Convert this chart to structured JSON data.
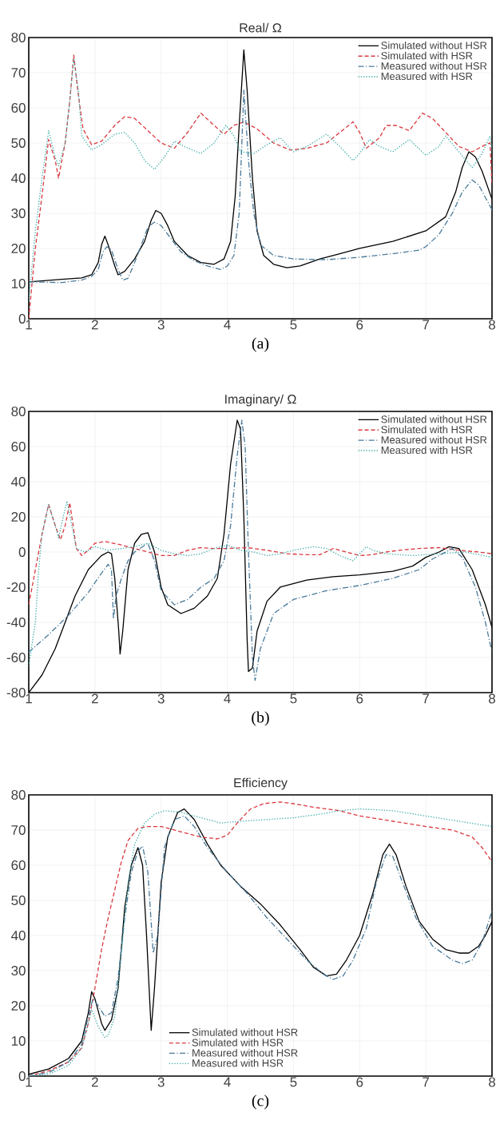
{
  "chart_data": [
    {
      "type": "line",
      "title": "Real/ Ω",
      "annotations": [
        "(a)"
      ],
      "xlim": [
        1,
        8
      ],
      "ylim": [
        0,
        80
      ],
      "xticks": [
        1,
        2,
        3,
        4,
        5,
        6,
        7,
        8
      ],
      "yticks": [
        0,
        10,
        20,
        30,
        40,
        50,
        60,
        70,
        80
      ],
      "grid": true,
      "legend": "top right",
      "marker": "none",
      "series": [
        {
          "name": "Simulated without HSR",
          "color": "#000000",
          "line_style": "solid",
          "x": [
            1,
            1.5,
            1.8,
            1.95,
            2.05,
            2.1,
            2.15,
            2.2,
            2.3,
            2.35,
            2.45,
            2.6,
            2.75,
            2.85,
            2.92,
            3.0,
            3.1,
            3.2,
            3.4,
            3.6,
            3.8,
            3.95,
            4.05,
            4.12,
            4.18,
            4.25,
            4.3,
            4.38,
            4.45,
            4.55,
            4.7,
            4.9,
            5.1,
            5.4,
            5.7,
            6.0,
            6.5,
            7.0,
            7.3,
            7.45,
            7.55,
            7.65,
            7.75,
            7.85,
            8.0
          ],
          "values": [
            10.5,
            11.2,
            11.6,
            12.5,
            16,
            21,
            23.5,
            21,
            15,
            12.5,
            13.5,
            17,
            22,
            28,
            30.8,
            30,
            26.5,
            22,
            18,
            16,
            15.5,
            17,
            22,
            35,
            55,
            76.5,
            65,
            40,
            25,
            18,
            15.5,
            14.5,
            15,
            17,
            18.5,
            20,
            22,
            25,
            29,
            36,
            43,
            47.5,
            46,
            42,
            34
          ]
        },
        {
          "name": "Simulated with HSR",
          "color": "#d9393f",
          "line_style": "dashed",
          "x": [
            1,
            1.1,
            1.2,
            1.3,
            1.4,
            1.45,
            1.55,
            1.62,
            1.68,
            1.74,
            1.82,
            1.95,
            2.1,
            2.3,
            2.45,
            2.6,
            2.8,
            3.0,
            3.2,
            3.4,
            3.6,
            3.8,
            3.95,
            4.1,
            4.25,
            4.45,
            4.7,
            4.95,
            5.2,
            5.5,
            5.7,
            5.9,
            6.0,
            6.1,
            6.3,
            6.4,
            6.55,
            6.75,
            6.95,
            7.1,
            7.3,
            7.5,
            7.7,
            7.9,
            7.97,
            8.0
          ],
          "values": [
            0,
            20,
            35,
            51,
            45,
            40,
            50,
            62,
            75,
            65,
            54,
            49.5,
            50.5,
            55,
            57.5,
            57,
            53.5,
            50,
            48.5,
            53,
            58.5,
            55,
            52.5,
            55,
            56,
            54,
            50,
            48,
            48.5,
            50,
            53,
            56,
            53,
            48.5,
            51.5,
            55,
            55,
            53.5,
            58.5,
            57,
            53,
            49,
            47.5,
            49.5,
            50,
            38
          ]
        },
        {
          "name": "Measured without HSR",
          "color": "#4a7a9a",
          "line_style": "dashdot",
          "x": [
            1,
            1.5,
            1.8,
            1.95,
            2.05,
            2.12,
            2.18,
            2.25,
            2.35,
            2.42,
            2.5,
            2.6,
            2.7,
            2.8,
            2.9,
            3.0,
            3.1,
            3.3,
            3.5,
            3.7,
            3.9,
            4.0,
            4.1,
            4.18,
            4.25,
            4.32,
            4.4,
            4.5,
            4.7,
            5.0,
            5.5,
            6.0,
            6.5,
            6.9,
            7.0,
            7.2,
            7.4,
            7.55,
            7.7,
            7.8,
            8.0
          ],
          "values": [
            10.5,
            10.3,
            11,
            12,
            14,
            19,
            20.5,
            19.5,
            14,
            11,
            11.5,
            16,
            21,
            26,
            27.5,
            26.5,
            24,
            19,
            16.5,
            15,
            14,
            15,
            18,
            30,
            65,
            45,
            30,
            21,
            18,
            17,
            16.8,
            17.5,
            18.5,
            19.5,
            20.5,
            24,
            30,
            36,
            39.5,
            38,
            31
          ]
        },
        {
          "name": "Measured with HSR",
          "color": "#3aaaa8",
          "line_style": "dotted",
          "x": [
            1,
            1.1,
            1.2,
            1.3,
            1.4,
            1.45,
            1.55,
            1.62,
            1.68,
            1.75,
            1.8,
            1.95,
            2.1,
            2.3,
            2.45,
            2.6,
            2.75,
            2.9,
            3.05,
            3.2,
            3.35,
            3.6,
            3.8,
            3.98,
            4.1,
            4.2,
            4.4,
            4.6,
            4.8,
            5.0,
            5.2,
            5.5,
            5.7,
            5.9,
            6.0,
            6.15,
            6.3,
            6.5,
            6.75,
            7.0,
            7.2,
            7.3,
            7.5,
            7.7,
            7.85,
            7.97,
            8.0
          ],
          "values": [
            5,
            25,
            40,
            53.5,
            46,
            43.5,
            50,
            62,
            74,
            65,
            52,
            48,
            49.5,
            52.5,
            53,
            50,
            45,
            42.5,
            46,
            50.5,
            49,
            47,
            50,
            55,
            52,
            47.5,
            47,
            49.5,
            51.5,
            47.5,
            49,
            52.5,
            49,
            45,
            47,
            51,
            49,
            47.5,
            51,
            46.5,
            49,
            52,
            47.5,
            43,
            47,
            52,
            48
          ]
        }
      ]
    },
    {
      "type": "line",
      "title": "Imaginary/ Ω",
      "annotations": [
        "(b)"
      ],
      "xlim": [
        1,
        8
      ],
      "ylim": [
        -80,
        80
      ],
      "xticks": [
        1,
        2,
        3,
        4,
        5,
        6,
        7,
        8
      ],
      "yticks": [
        -80,
        -60,
        -40,
        -20,
        0,
        20,
        40,
        60,
        80
      ],
      "grid": true,
      "legend": "top right",
      "marker": "none",
      "series": [
        {
          "name": "Simulated without HSR",
          "color": "#000000",
          "line_style": "solid",
          "x": [
            1,
            1.2,
            1.4,
            1.6,
            1.7,
            1.9,
            2.1,
            2.2,
            2.25,
            2.3,
            2.36,
            2.38,
            2.42,
            2.5,
            2.6,
            2.7,
            2.8,
            2.9,
            3.0,
            3.1,
            3.3,
            3.5,
            3.7,
            3.85,
            3.95,
            4.05,
            4.15,
            4.2,
            4.25,
            4.3,
            4.32,
            4.38,
            4.45,
            4.6,
            4.8,
            5.2,
            5.6,
            6.0,
            6.5,
            6.8,
            7.0,
            7.2,
            7.35,
            7.5,
            7.7,
            7.9,
            8.0
          ],
          "values": [
            -80,
            -70,
            -55,
            -35,
            -25,
            -10,
            -2,
            0,
            -1,
            -15,
            -45,
            -58,
            -45,
            -10,
            5,
            10,
            11,
            0,
            -20,
            -30,
            -35,
            -32,
            -25,
            -15,
            10,
            50,
            75,
            70,
            20,
            -50,
            -68,
            -66,
            -45,
            -28,
            -20,
            -16,
            -14,
            -13,
            -11,
            -8,
            -3,
            0,
            3,
            2,
            -10,
            -30,
            -43
          ]
        },
        {
          "name": "Simulated with HSR",
          "color": "#d9393f",
          "line_style": "dashed",
          "x": [
            1,
            1.1,
            1.2,
            1.3,
            1.4,
            1.48,
            1.55,
            1.62,
            1.67,
            1.72,
            1.8,
            1.9,
            2.0,
            2.15,
            2.4,
            2.6,
            2.8,
            3.0,
            3.2,
            3.4,
            3.6,
            3.8,
            4.0,
            4.3,
            4.6,
            4.9,
            5.2,
            5.4,
            5.6,
            5.8,
            6.0,
            6.2,
            6.4,
            6.6,
            6.9,
            7.2,
            7.5,
            7.8,
            8.0
          ],
          "values": [
            -30,
            -10,
            10,
            27,
            15,
            7,
            15,
            28,
            15,
            2,
            -2,
            1,
            5,
            6,
            4,
            2,
            0,
            -2,
            -2,
            1,
            2.5,
            2,
            2,
            2.5,
            1,
            -1,
            -1.5,
            -1.5,
            2,
            0,
            -2,
            -1.5,
            0,
            1,
            2,
            2.5,
            1,
            0,
            -1
          ]
        },
        {
          "name": "Measured without HSR",
          "color": "#4a7a9a",
          "line_style": "dashdot",
          "x": [
            1,
            1.3,
            1.6,
            1.9,
            2.1,
            2.2,
            2.25,
            2.28,
            2.32,
            2.4,
            2.5,
            2.6,
            2.8,
            2.9,
            3.0,
            3.2,
            3.4,
            3.6,
            3.8,
            3.95,
            4.05,
            4.15,
            4.22,
            4.27,
            4.32,
            4.38,
            4.42,
            4.5,
            4.7,
            5.0,
            5.5,
            6.0,
            6.5,
            6.9,
            7.1,
            7.4,
            7.55,
            7.75,
            7.9,
            8.0
          ],
          "values": [
            -57,
            -47,
            -36,
            -23,
            -12,
            -7,
            -10,
            -38,
            -25,
            -15,
            -5,
            0,
            5,
            -5,
            -22,
            -30,
            -27,
            -20,
            -15,
            -5,
            15,
            55,
            75,
            60,
            0,
            -60,
            -73,
            -55,
            -35,
            -27,
            -22,
            -19,
            -15,
            -10,
            -4,
            2,
            -3,
            -20,
            -40,
            -57
          ]
        },
        {
          "name": "Measured with HSR",
          "color": "#3aaaa8",
          "line_style": "dotted",
          "x": [
            1,
            1.1,
            1.15,
            1.2,
            1.3,
            1.4,
            1.45,
            1.52,
            1.58,
            1.65,
            1.72,
            1.85,
            2.0,
            2.2,
            2.4,
            2.6,
            2.8,
            3.0,
            3.2,
            3.4,
            3.6,
            3.8,
            4.0,
            4.2,
            4.4,
            4.6,
            4.8,
            5.0,
            5.3,
            5.5,
            5.7,
            5.9,
            6.0,
            6.1,
            6.2,
            6.4,
            6.8,
            7.2,
            7.6,
            8.0
          ],
          "values": [
            -65,
            -40,
            -10,
            10,
            27,
            15,
            8,
            20,
            29,
            15,
            2,
            0,
            3,
            1,
            2,
            3,
            5,
            1,
            -1,
            -2,
            -1,
            2,
            4,
            1,
            0,
            -2,
            -1,
            1,
            3,
            2,
            -2,
            -5,
            -1,
            3,
            1,
            -1,
            -2,
            -1,
            0,
            -3
          ]
        }
      ]
    },
    {
      "type": "line",
      "title": "Efficiency",
      "annotations": [
        "(c)"
      ],
      "xlim": [
        1,
        8
      ],
      "ylim": [
        0,
        80
      ],
      "xticks": [
        1,
        2,
        3,
        4,
        5,
        6,
        7,
        8
      ],
      "yticks": [
        0,
        10,
        20,
        30,
        40,
        50,
        60,
        70,
        80
      ],
      "grid": true,
      "legend": "bottom",
      "marker": "none",
      "series": [
        {
          "name": "Simulated without HSR",
          "color": "#000000",
          "line_style": "solid",
          "x": [
            1,
            1.3,
            1.6,
            1.8,
            1.9,
            1.95,
            2.0,
            2.1,
            2.15,
            2.25,
            2.35,
            2.45,
            2.55,
            2.65,
            2.72,
            2.78,
            2.85,
            2.9,
            3.0,
            3.1,
            3.25,
            3.35,
            3.5,
            3.7,
            3.9,
            4.2,
            4.5,
            4.8,
            5.1,
            5.3,
            5.5,
            5.65,
            5.8,
            6.0,
            6.2,
            6.35,
            6.45,
            6.55,
            6.7,
            6.9,
            7.1,
            7.3,
            7.5,
            7.65,
            7.8,
            7.9,
            8.0
          ],
          "values": [
            0.5,
            2,
            5,
            10,
            18,
            24,
            22,
            15,
            13,
            16,
            25,
            48,
            60,
            65,
            60,
            40,
            13,
            25,
            55,
            68,
            75,
            76,
            73,
            66,
            60,
            54,
            49,
            43,
            36,
            31,
            28.5,
            29,
            33,
            40,
            52,
            63,
            66,
            63,
            54,
            44,
            39,
            36,
            35,
            35,
            37,
            40,
            44
          ]
        },
        {
          "name": "Simulated with HSR",
          "color": "#d9393f",
          "line_style": "dashed",
          "x": [
            1,
            1.3,
            1.6,
            1.8,
            1.9,
            2.0,
            2.1,
            2.2,
            2.3,
            2.4,
            2.5,
            2.65,
            2.8,
            3.0,
            3.2,
            3.4,
            3.6,
            3.85,
            4.0,
            4.15,
            4.35,
            4.55,
            4.8,
            5.0,
            5.3,
            5.7,
            6.0,
            6.5,
            7.0,
            7.4,
            7.7,
            7.85,
            8.0
          ],
          "values": [
            0,
            1.5,
            4,
            8,
            15,
            25,
            36,
            45,
            53,
            61,
            67,
            70.5,
            71,
            71,
            70,
            69,
            68,
            67.5,
            68.5,
            72,
            76,
            77.5,
            78,
            77.5,
            76.5,
            75.5,
            74,
            72.5,
            71,
            70,
            68,
            65,
            61
          ]
        },
        {
          "name": "Measured without HSR",
          "color": "#4a7a9a",
          "line_style": "dashdot",
          "x": [
            1,
            1.3,
            1.6,
            1.8,
            1.9,
            1.97,
            2.05,
            2.15,
            2.25,
            2.35,
            2.45,
            2.55,
            2.65,
            2.72,
            2.8,
            2.88,
            2.95,
            3.05,
            3.2,
            3.35,
            3.5,
            3.7,
            4.0,
            4.3,
            4.6,
            4.9,
            5.2,
            5.45,
            5.6,
            5.75,
            5.9,
            6.1,
            6.25,
            6.4,
            6.5,
            6.65,
            6.85,
            7.1,
            7.4,
            7.55,
            7.7,
            7.85,
            8.0
          ],
          "values": [
            0,
            1,
            4,
            9,
            17,
            22,
            20,
            17,
            18,
            28,
            45,
            58,
            64,
            65.5,
            58,
            35,
            40,
            65,
            73,
            74,
            71,
            65,
            58,
            52,
            45,
            39,
            33,
            29,
            27.5,
            28.5,
            33,
            42,
            55,
            63,
            62.5,
            55,
            45,
            37,
            33,
            32,
            33,
            38,
            47
          ]
        },
        {
          "name": "Measured with HSR",
          "color": "#3aaaa8",
          "line_style": "dotted",
          "x": [
            1,
            1.3,
            1.6,
            1.8,
            1.9,
            1.95,
            2.05,
            2.15,
            2.2,
            2.3,
            2.4,
            2.5,
            2.6,
            2.75,
            2.9,
            3.05,
            3.3,
            3.6,
            3.9,
            4.2,
            4.6,
            5.0,
            5.4,
            5.7,
            6.0,
            6.5,
            7.0,
            7.5,
            8.0
          ],
          "values": [
            0,
            0.5,
            3,
            8,
            15,
            19,
            14,
            11,
            11.5,
            17,
            35,
            55,
            66,
            72,
            74.5,
            75.5,
            75,
            73.5,
            72,
            72.5,
            73,
            73.5,
            74.5,
            75.5,
            76,
            75.5,
            74,
            72.5,
            71
          ]
        }
      ]
    }
  ]
}
